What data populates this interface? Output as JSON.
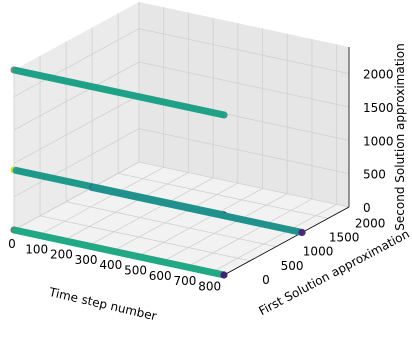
{
  "chart_data": {
    "type": "scatter",
    "projection": "3d",
    "title": "",
    "xlabel": "Time step number",
    "ylabel": "First Solution approximation",
    "zlabel": "Second Solution approximation",
    "xlim": [
      0,
      850
    ],
    "ylim": [
      0,
      2400
    ],
    "zlim": [
      0,
      2400
    ],
    "x_ticks": [
      0,
      100,
      200,
      300,
      400,
      500,
      600,
      700,
      800
    ],
    "y_ticks": [
      0,
      500,
      1000,
      1500,
      2000
    ],
    "z_ticks": [
      0,
      500,
      1000,
      1500,
      2000
    ],
    "grid": true,
    "colormap": "viridis",
    "series": [
      {
        "x": [
          0,
          850
        ],
        "y": [
          0,
          0
        ],
        "z": [
          2400,
          2400
        ],
        "color": "#1fa187",
        "start_color": "#7f7f7f",
        "end_color": "#1fa187"
      },
      {
        "x": [
          0,
          850
        ],
        "y": [
          0,
          0
        ],
        "z": [
          900,
          900
        ],
        "color": "#1f9a8a",
        "start_color": "#c8d93a",
        "end_color": "#3b0f70"
      },
      {
        "x": [
          0,
          850
        ],
        "y": [
          1500,
          1500
        ],
        "z": [
          0,
          0
        ],
        "color": "#21918c",
        "start_color": "#2a788e",
        "end_color": "#482475"
      },
      {
        "x": [
          0,
          850
        ],
        "y": [
          0,
          0
        ],
        "z": [
          0,
          0
        ],
        "color": "#22a884",
        "start_color": "#5a7a6f",
        "end_color": "#3b1c6f"
      }
    ]
  }
}
